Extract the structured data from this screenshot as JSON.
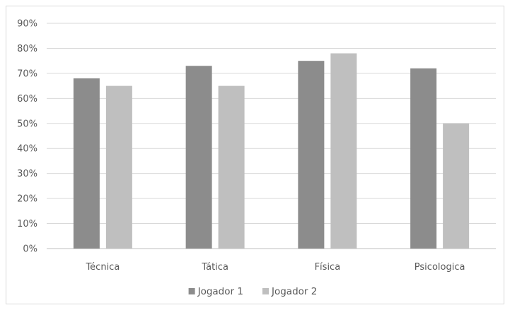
{
  "chart_data": {
    "type": "bar",
    "categories": [
      "Técnica",
      "Tática",
      "Física",
      "Psicologica"
    ],
    "series": [
      {
        "name": "Jogador 1",
        "values": [
          68,
          73,
          75,
          72
        ],
        "color": "#8c8c8c"
      },
      {
        "name": "Jogador 2",
        "values": [
          65,
          65,
          78,
          50
        ],
        "color": "#bfbfbf"
      }
    ],
    "title": "",
    "xlabel": "",
    "ylabel": "",
    "ylim": [
      0,
      90
    ],
    "y_ticks": [
      "0%",
      "10%",
      "20%",
      "30%",
      "40%",
      "50%",
      "60%",
      "70%",
      "80%",
      "90%"
    ],
    "grid": true,
    "legend_position": "bottom"
  }
}
